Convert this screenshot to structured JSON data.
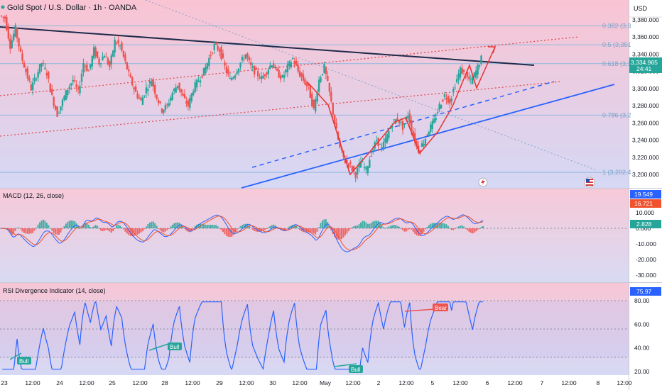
{
  "title": "Gold Spot / U.S. Dollar · 1h · OANDA",
  "currency": "USD",
  "price": {
    "current": "3,334.965",
    "countdown": "24:41"
  },
  "price_ticks": [
    "3,380.000",
    "3,360.000",
    "3,340.000",
    "3,320.000",
    "3,300.000",
    "3,280.000",
    "3,260.000",
    "3,240.000",
    "3,220.000",
    "3,200.000"
  ],
  "fib_levels": [
    {
      "label": "0.382 (3,3",
      "price": 3373
    },
    {
      "label": "0.5 (3,351",
      "price": 3351
    },
    {
      "label": "0.618 (3,3",
      "price": 3329
    },
    {
      "label": "0.786 (3,2",
      "price": 3269
    },
    {
      "label": "1 (3,202.4",
      "price": 3202.4
    }
  ],
  "x_ticks": [
    "23",
    "12:00",
    "24",
    "12:00",
    "25",
    "12:00",
    "28",
    "12:00",
    "29",
    "12:00",
    "30",
    "12:00",
    "May",
    "12:00",
    "2",
    "12:00",
    "5",
    "12:00",
    "6",
    "12:00",
    "7",
    "12:00",
    "8",
    "12:00"
  ],
  "macd": {
    "title": "MACD (12, 26, close)",
    "labels": {
      "macd": "19.549",
      "signal": "16.721",
      "hist": "2.828"
    },
    "ticks": [
      "10.000",
      "0.000",
      "-10.000",
      "-20.000",
      "-30.000"
    ]
  },
  "rsi": {
    "title": "RSI Divergence Indicator (14, close)",
    "value": "75.97",
    "ticks": [
      "80.00",
      "60.00",
      "40.00",
      "20.00"
    ],
    "signals": [
      {
        "label": "Bull",
        "type": "bull"
      },
      {
        "label": "Bull",
        "type": "bull"
      },
      {
        "label": "Bull",
        "type": "bull"
      },
      {
        "label": "Bear",
        "type": "bear"
      }
    ]
  },
  "colors": {
    "up": "#26a69a",
    "down": "#ef5350",
    "blue": "#2962ff",
    "bg_top": "#f9c4d3",
    "bg_bottom": "#d5d8f5"
  },
  "chart_data": {
    "type": "candlestick",
    "ylim": [
      3195,
      3395
    ],
    "close_path": [
      3385,
      3382,
      3350,
      3370,
      3340,
      3320,
      3300,
      3315,
      3330,
      3318,
      3290,
      3270,
      3285,
      3300,
      3310,
      3295,
      3330,
      3320,
      3345,
      3330,
      3340,
      3325,
      3355,
      3350,
      3330,
      3310,
      3295,
      3285,
      3300,
      3310,
      3290,
      3275,
      3280,
      3295,
      3305,
      3290,
      3280,
      3300,
      3310,
      3320,
      3335,
      3350,
      3345,
      3325,
      3310,
      3318,
      3330,
      3340,
      3325,
      3318,
      3312,
      3320,
      3330,
      3318,
      3312,
      3325,
      3335,
      3320,
      3310,
      3300,
      3275,
      3310,
      3325,
      3295,
      3260,
      3230,
      3215,
      3210,
      3200,
      3215,
      3205,
      3225,
      3240,
      3230,
      3245,
      3260,
      3265,
      3255,
      3270,
      3245,
      3228,
      3238,
      3252,
      3262,
      3280,
      3292,
      3285,
      3305,
      3322,
      3315,
      3308,
      3320,
      3335
    ]
  }
}
